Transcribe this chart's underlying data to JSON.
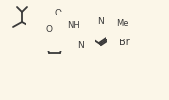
{
  "bg_color": "#fbf6e8",
  "line_color": "#3a3a3a",
  "lw": 1.3,
  "fs": 6.5,
  "atoms": {
    "O1_label": "O",
    "O2_label": "O",
    "N_pyr_label": "N",
    "N1_label": "N",
    "NH_label": "H\nN",
    "Br_label": "Br",
    "Me_label": "Me",
    "N_py_label": "N"
  }
}
